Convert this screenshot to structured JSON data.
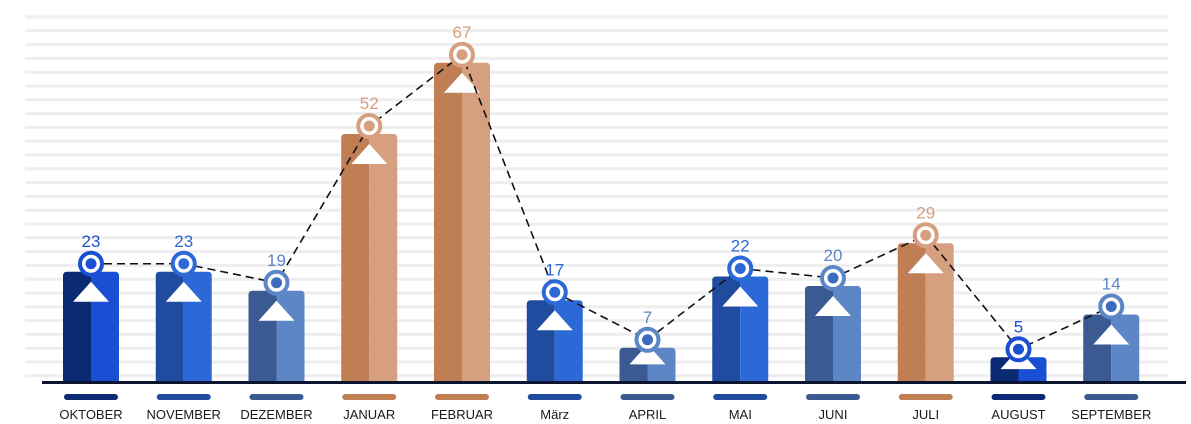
{
  "chart_data": {
    "type": "bar",
    "categories": [
      "OKTOBER",
      "NOVEMBER",
      "DEZEMBER",
      "JANUAR",
      "FEBRUAR",
      "März",
      "APRIL",
      "MAI",
      "JUNI",
      "JULI",
      "AUGUST",
      "SEPTEMBER"
    ],
    "values": [
      23,
      23,
      19,
      52,
      67,
      17,
      7,
      22,
      20,
      29,
      5,
      14
    ],
    "value_labels": [
      "23",
      "23",
      "19",
      "52",
      "67",
      "17",
      "7",
      "22",
      "20",
      "29",
      "5",
      "14"
    ],
    "ylim": [
      0,
      70
    ],
    "grid": true,
    "overlay_line": "dashed line connecting the values, with ring markers",
    "colors": {
      "dark_blue": "#0a2a73",
      "bright_blue": "#1a4fd4",
      "mid_blue": "#2d69d6",
      "slate_blue": "#3a5a91",
      "copper": "#c07e55",
      "copper_light": "#d6a080",
      "axis": "#0b1530",
      "grid": "#eeeeee"
    },
    "bar_style": [
      "bright",
      "mid",
      "slate",
      "copper",
      "copper",
      "mid",
      "slate",
      "mid",
      "slate",
      "copper",
      "bright",
      "slate"
    ]
  }
}
